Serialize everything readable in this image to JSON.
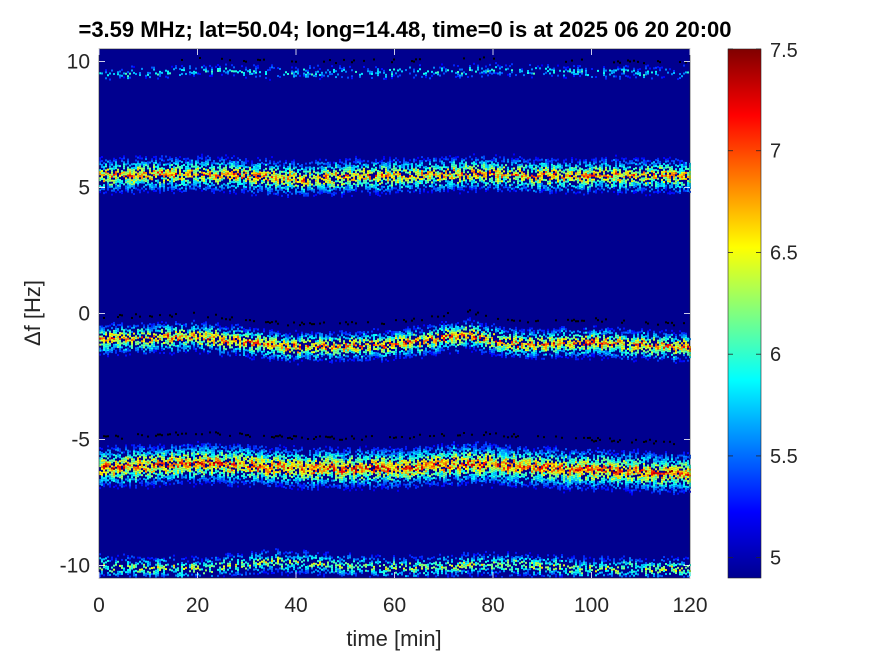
{
  "chart_data": {
    "type": "heatmap",
    "title": "=3.59 MHz;  lat=50.04; long=14.48, time=0 is at 2025 06 20 20:00",
    "xlabel": "time [min]",
    "ylabel": "Δf [Hz]",
    "xlim": [
      0,
      120
    ],
    "ylim": [
      -10.5,
      10.5
    ],
    "x_ticks": [
      0,
      20,
      40,
      60,
      80,
      100,
      120
    ],
    "x_tick_labels": [
      "0",
      "20",
      "40",
      "60",
      "80",
      "100",
      "120"
    ],
    "y_ticks": [
      10,
      5,
      0,
      -5,
      -10
    ],
    "y_tick_labels": [
      "10",
      "5",
      "0",
      "-5",
      "-10"
    ],
    "colorbar": {
      "range": [
        4.9,
        7.5
      ],
      "ticks": [
        5,
        5.5,
        6,
        6.5,
        7,
        7.5
      ],
      "tick_labels": [
        "5",
        "5.5",
        "6",
        "6.5",
        "7",
        "7.5"
      ],
      "colormap": "jet"
    },
    "background_color": "#00008f",
    "traces": [
      {
        "center_hz": 9.6,
        "spread_hz": 0.15,
        "peak": 6.2,
        "density": 0.35,
        "profile": [
          [
            0,
            9.5
          ],
          [
            20,
            9.7
          ],
          [
            40,
            9.6
          ],
          [
            60,
            9.6
          ],
          [
            80,
            9.7
          ],
          [
            100,
            9.6
          ],
          [
            120,
            9.6
          ]
        ]
      },
      {
        "center_hz": 5.5,
        "spread_hz": 0.35,
        "peak": 7.3,
        "density": 0.75,
        "profile": [
          [
            0,
            5.5
          ],
          [
            20,
            5.6
          ],
          [
            40,
            5.4
          ],
          [
            60,
            5.5
          ],
          [
            80,
            5.6
          ],
          [
            90,
            5.5
          ],
          [
            120,
            5.5
          ]
        ]
      },
      {
        "center_hz": -1.0,
        "spread_hz": 0.3,
        "peak": 7.4,
        "density": 0.75,
        "profile": [
          [
            0,
            -1.0
          ],
          [
            20,
            -0.9
          ],
          [
            40,
            -1.3
          ],
          [
            60,
            -1.2
          ],
          [
            75,
            -0.8
          ],
          [
            85,
            -1.2
          ],
          [
            100,
            -1.1
          ],
          [
            120,
            -1.3
          ]
        ]
      },
      {
        "center_hz": -6.0,
        "spread_hz": 0.4,
        "peak": 7.5,
        "density": 0.85,
        "profile": [
          [
            0,
            -6.1
          ],
          [
            20,
            -5.9
          ],
          [
            40,
            -6.1
          ],
          [
            60,
            -6.1
          ],
          [
            75,
            -5.9
          ],
          [
            90,
            -6.1
          ],
          [
            120,
            -6.3
          ]
        ]
      },
      {
        "center_hz": -10.0,
        "spread_hz": 0.25,
        "peak": 6.8,
        "density": 0.55,
        "profile": [
          [
            0,
            -10.0
          ],
          [
            20,
            -10.1
          ],
          [
            35,
            -9.8
          ],
          [
            60,
            -10.1
          ],
          [
            80,
            -9.9
          ],
          [
            100,
            -10.1
          ],
          [
            120,
            -10.1
          ]
        ]
      }
    ]
  }
}
